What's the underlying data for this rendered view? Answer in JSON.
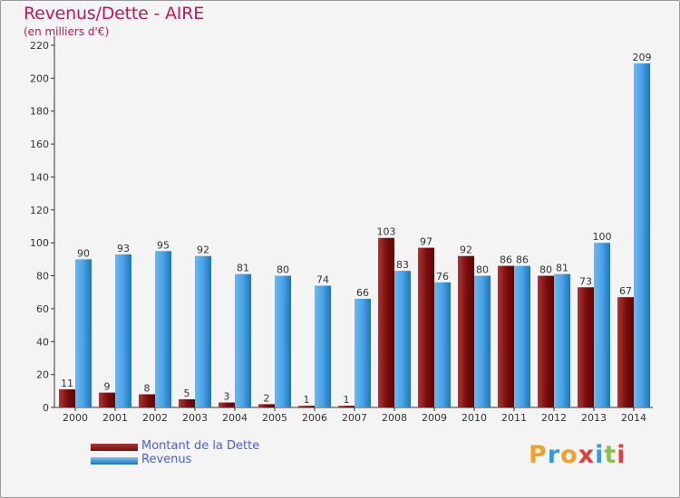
{
  "title": "Revenus/Dette - AIRE",
  "subtitle": "(en milliers d'€)",
  "legend": {
    "debt_label": "Montant de la Dette",
    "revenue_label": "Revenus"
  },
  "logo": {
    "text": "Proxiti",
    "colors": [
      "#f0a030",
      "#3a9ad9",
      "#f0a030",
      "#e04040",
      "#3a9ad9",
      "#8bc34a",
      "#e04040"
    ]
  },
  "colors": {
    "debt": "#7a0c0c",
    "debt_light": "#a83838",
    "revenue": "#4aa3e6",
    "revenue_dark": "#1f73bd",
    "title": "#c2185b",
    "legend_text": "#4a5fe0"
  },
  "chart_data": {
    "type": "bar",
    "categories": [
      "2000",
      "2001",
      "2002",
      "2003",
      "2004",
      "2005",
      "2006",
      "2007",
      "2008",
      "2009",
      "2010",
      "2011",
      "2012",
      "2013",
      "2014"
    ],
    "series": [
      {
        "name": "Montant de la Dette",
        "values": [
          11,
          9,
          8,
          5,
          3,
          2,
          1,
          1,
          103,
          97,
          92,
          86,
          80,
          73,
          67
        ]
      },
      {
        "name": "Revenus",
        "values": [
          90,
          93,
          95,
          92,
          81,
          80,
          74,
          66,
          83,
          76,
          80,
          86,
          81,
          100,
          209
        ]
      }
    ],
    "ylim": [
      0,
      220
    ],
    "yticks": [
      0,
      20,
      40,
      60,
      80,
      100,
      120,
      140,
      160,
      180,
      200,
      220
    ],
    "grid": false,
    "legend_position": "bottom-left"
  }
}
